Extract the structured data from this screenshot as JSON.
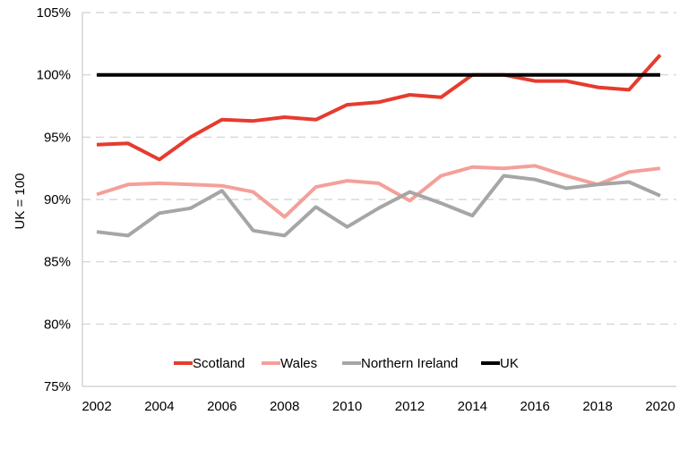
{
  "chart_data": {
    "type": "line",
    "title": "",
    "xlabel": "",
    "ylabel": "UK = 100",
    "x": [
      2002,
      2003,
      2004,
      2005,
      2006,
      2007,
      2008,
      2009,
      2010,
      2011,
      2012,
      2013,
      2014,
      2015,
      2016,
      2017,
      2018,
      2019,
      2020
    ],
    "x_ticks": [
      "2002",
      "2004",
      "2006",
      "2008",
      "2010",
      "2012",
      "2014",
      "2016",
      "2018",
      "2020"
    ],
    "xlim": [
      2002,
      2020
    ],
    "ylim": [
      75,
      105
    ],
    "y_ticks": [
      "75%",
      "80%",
      "85%",
      "90%",
      "95%",
      "100%",
      "105%"
    ],
    "grid": "horizontal dashed",
    "legend_position": "bottom-center",
    "series": [
      {
        "name": "Scotland",
        "color": "#e63b2e",
        "values": [
          94.4,
          94.5,
          93.2,
          95.0,
          96.4,
          96.3,
          96.6,
          96.4,
          97.6,
          97.8,
          98.4,
          98.2,
          100.0,
          100.0,
          99.5,
          99.5,
          99.0,
          98.8,
          101.6
        ]
      },
      {
        "name": "Wales",
        "color": "#f4a09a",
        "values": [
          90.4,
          91.2,
          91.3,
          91.2,
          91.1,
          90.6,
          88.6,
          91.0,
          91.5,
          91.3,
          89.9,
          91.9,
          92.6,
          92.5,
          92.7,
          91.9,
          91.2,
          92.2,
          92.5
        ]
      },
      {
        "name": "Northern Ireland",
        "color": "#a6a6a6",
        "values": [
          87.4,
          87.1,
          88.9,
          89.3,
          90.7,
          87.5,
          87.1,
          89.4,
          87.8,
          89.3,
          90.6,
          89.7,
          88.7,
          91.9,
          91.6,
          90.9,
          91.2,
          91.4,
          90.3
        ]
      },
      {
        "name": "UK",
        "color": "#000000",
        "values": [
          100,
          100,
          100,
          100,
          100,
          100,
          100,
          100,
          100,
          100,
          100,
          100,
          100,
          100,
          100,
          100,
          100,
          100,
          100
        ]
      }
    ]
  }
}
